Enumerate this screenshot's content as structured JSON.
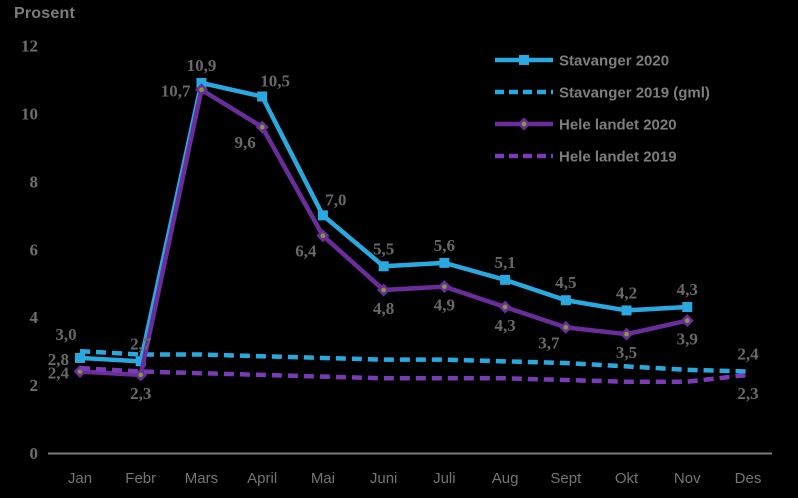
{
  "title": "Prosent",
  "chart_data": {
    "type": "line",
    "title": "Prosent",
    "background_color": "#000000",
    "axis_color": "#7a7a7a",
    "text_color": "#747474",
    "data_label_color": "#686868",
    "decimal_separator": ",",
    "grid": false,
    "legend_position": "top-right",
    "categories": [
      "Jan",
      "Febr",
      "Mars",
      "April",
      "Mai",
      "Juni",
      "Juli",
      "Aug",
      "Sept",
      "Okt",
      "Nov",
      "Des"
    ],
    "ylim": [
      0,
      12
    ],
    "yticks": [
      "0",
      "2",
      "4",
      "6",
      "8",
      "10",
      "12"
    ],
    "series": [
      {
        "name": "Stavanger 2020",
        "color": "#29A9E0",
        "line_style": "solid",
        "marker": "square",
        "values": [
          2.8,
          2.7,
          10.9,
          10.5,
          7.0,
          5.5,
          5.6,
          5.1,
          4.5,
          4.2,
          4.3,
          null
        ],
        "data_labels": [
          "2,8",
          "2,7",
          "10,9",
          "10,5",
          "7,0",
          "5,5",
          "5,6",
          "5,1",
          "4,5",
          "4,2",
          "4,3",
          null
        ],
        "label_pos": [
          "left",
          "above",
          "above",
          "above-right",
          "above-right",
          "above",
          "above",
          "above",
          "above",
          "above",
          "above",
          null
        ]
      },
      {
        "name": "Stavanger 2019 (gml)",
        "color": "#29A9E0",
        "line_style": "dashed",
        "marker": "none",
        "values": [
          3.0,
          2.9,
          2.9,
          2.85,
          2.8,
          2.75,
          2.75,
          2.7,
          2.65,
          2.55,
          2.45,
          2.4
        ],
        "data_labels": [
          "3,0",
          null,
          null,
          null,
          null,
          null,
          null,
          null,
          null,
          null,
          null,
          "2,4"
        ],
        "label_pos": [
          "above-left",
          null,
          null,
          null,
          null,
          null,
          null,
          null,
          null,
          null,
          null,
          "above"
        ]
      },
      {
        "name": "Hele landet 2020",
        "color": "#6C2D9C",
        "line_style": "solid",
        "marker": "diamond",
        "marker_center_color": "#7FA035",
        "values": [
          2.4,
          2.3,
          10.7,
          9.6,
          6.4,
          4.8,
          4.9,
          4.3,
          3.7,
          3.5,
          3.9,
          null
        ],
        "data_labels": [
          "2,4",
          "2,3",
          "10,7",
          "9,6",
          "6,4",
          "4,8",
          "4,9",
          "4,3",
          "3,7",
          "3,5",
          "3,9",
          null
        ],
        "label_pos": [
          "left",
          "below",
          "left",
          "below-left",
          "below-left",
          "below",
          "below",
          "below",
          "below-left",
          "below",
          "below",
          null
        ]
      },
      {
        "name": "Hele landet 2019",
        "color": "#7B3AB8",
        "line_style": "dashed",
        "marker": "none",
        "values": [
          2.5,
          2.4,
          2.35,
          2.3,
          2.25,
          2.2,
          2.2,
          2.2,
          2.15,
          2.1,
          2.1,
          2.3
        ],
        "data_labels": [
          null,
          null,
          null,
          null,
          null,
          null,
          null,
          null,
          null,
          null,
          null,
          "2,3"
        ],
        "label_pos": [
          null,
          null,
          null,
          null,
          null,
          null,
          null,
          null,
          null,
          null,
          null,
          "below"
        ]
      }
    ]
  }
}
